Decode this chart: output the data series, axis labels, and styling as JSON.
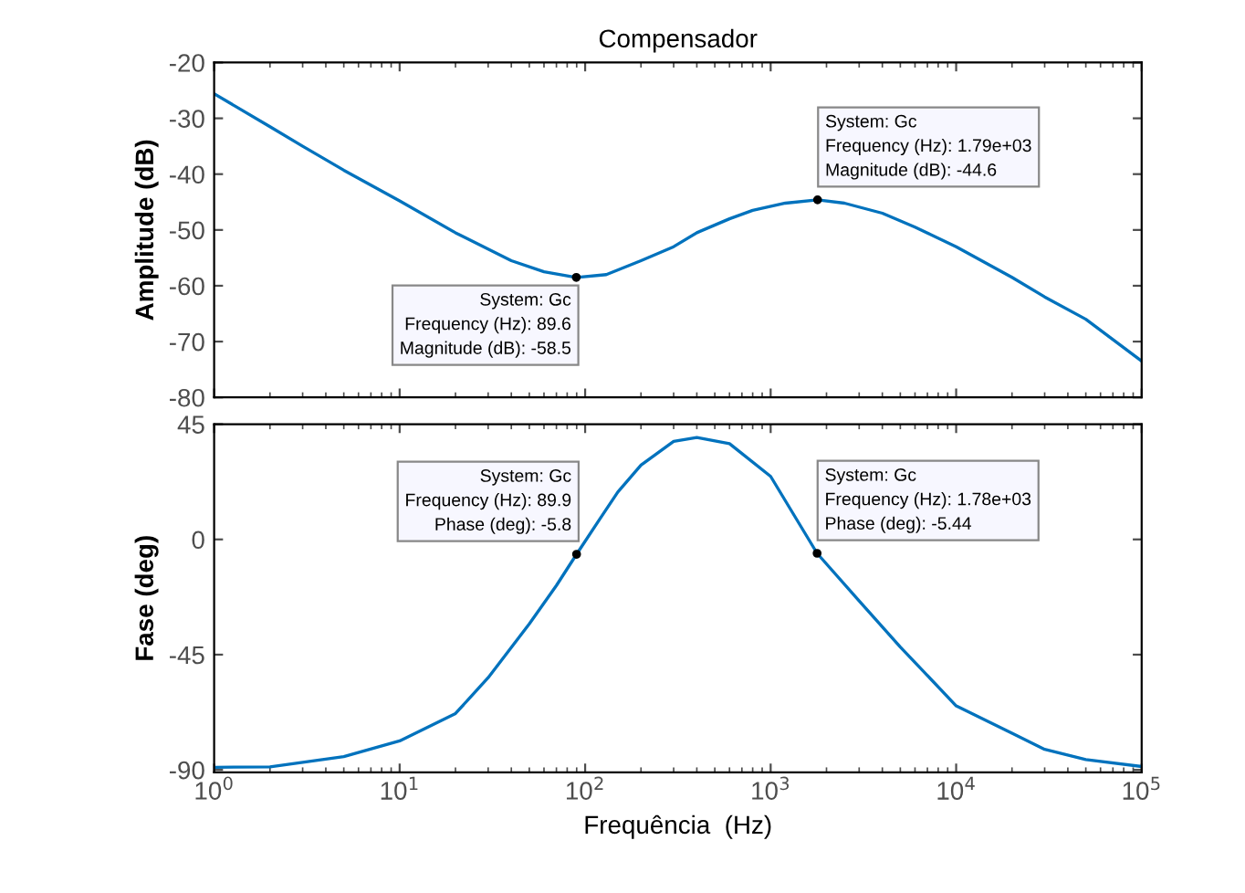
{
  "chart_data": [
    {
      "type": "line",
      "title": "Compensador",
      "ylabel": "Amplitude (dB)",
      "log": "x",
      "grid": false,
      "tick_labels": "y",
      "xlim": [
        1,
        100000
      ],
      "xticks": [
        {
          "value": 1,
          "label": null
        },
        {
          "value": 10,
          "label": null
        },
        {
          "value": 100,
          "label": null
        },
        {
          "value": 1000,
          "label": null
        },
        {
          "value": 10000,
          "label": null
        },
        {
          "value": 100000,
          "label": null
        }
      ],
      "ylim": [
        -80,
        -20
      ],
      "yticks": [
        -80,
        -70,
        -60,
        -50,
        -40,
        -30,
        -20
      ],
      "series": [
        {
          "color": "#0072bd",
          "x": [
            1,
            2,
            3,
            5,
            10,
            20,
            40,
            60,
            89.6,
            130,
            200,
            300,
            400,
            600,
            800,
            1200,
            1790,
            2500,
            4000,
            6000,
            10000,
            20000,
            30000,
            50000,
            100000
          ],
          "values": [
            -25.6,
            -31.5,
            -35,
            -39.3,
            -44.8,
            -50.5,
            -55.5,
            -57.5,
            -58.5,
            -58,
            -55.5,
            -53,
            -50.5,
            -48,
            -46.5,
            -45.2,
            -44.6,
            -45.2,
            -47,
            -49.5,
            -53,
            -58.5,
            -62,
            -66,
            -73.5
          ]
        }
      ],
      "annotations": [
        {
          "text": "System: Gc\nFrequency (Hz): 89.6\nMagnitude (dB): -58.5",
          "x": 89.6,
          "y": -58.5
        },
        {
          "text": "System: Gc\nFrequency (Hz): 1.79e+03\nMagnitude (dB): -44.6",
          "x": 1790,
          "y": -44.6
        }
      ]
    },
    {
      "type": "line",
      "xlabel": "Frequência  (Hz)",
      "ylabel": "Fase (deg)",
      "log": "x",
      "grid": false,
      "xlim": [
        1,
        100000
      ],
      "xticks": [
        {
          "value": 1,
          "label": "10$^{0}$"
        },
        {
          "value": 10,
          "label": "10$^{1}$"
        },
        {
          "value": 100,
          "label": "10$^{2}$"
        },
        {
          "value": 1000,
          "label": "10$^{3}$"
        },
        {
          "value": 10000,
          "label": "10$^{4}$"
        },
        {
          "value": 100000,
          "label": "10$^{5}$"
        }
      ],
      "ylim": [
        -91,
        45
      ],
      "yticks": [
        -90,
        -45,
        0,
        45
      ],
      "series": [
        {
          "color": "#0072bd",
          "x": [
            1,
            2,
            5,
            10,
            20,
            30,
            50,
            70,
            89.9,
            120,
            150,
            200,
            300,
            400,
            600,
            1000,
            1780,
            3000,
            5000,
            10000,
            20000,
            30000,
            50000,
            100000
          ],
          "values": [
            -89,
            -88.8,
            -84.8,
            -78.7,
            -68,
            -54,
            -33,
            -18,
            -5.8,
            8,
            18.5,
            29,
            38.3,
            39.8,
            37.4,
            24.6,
            -5.44,
            -24,
            -42,
            -65,
            -75.7,
            -82,
            -86,
            -88.7
          ]
        }
      ],
      "annotations": [
        {
          "text": "System: Gc\nFrequency (Hz): 89.9\nPhase (deg): -5.8",
          "x": 89.9,
          "y": -5.8
        },
        {
          "text": "System: Gc\nFrequency (Hz): 1.78e+03\nPhase (deg): -5.44",
          "x": 1780,
          "y": -5.44
        }
      ]
    }
  ]
}
